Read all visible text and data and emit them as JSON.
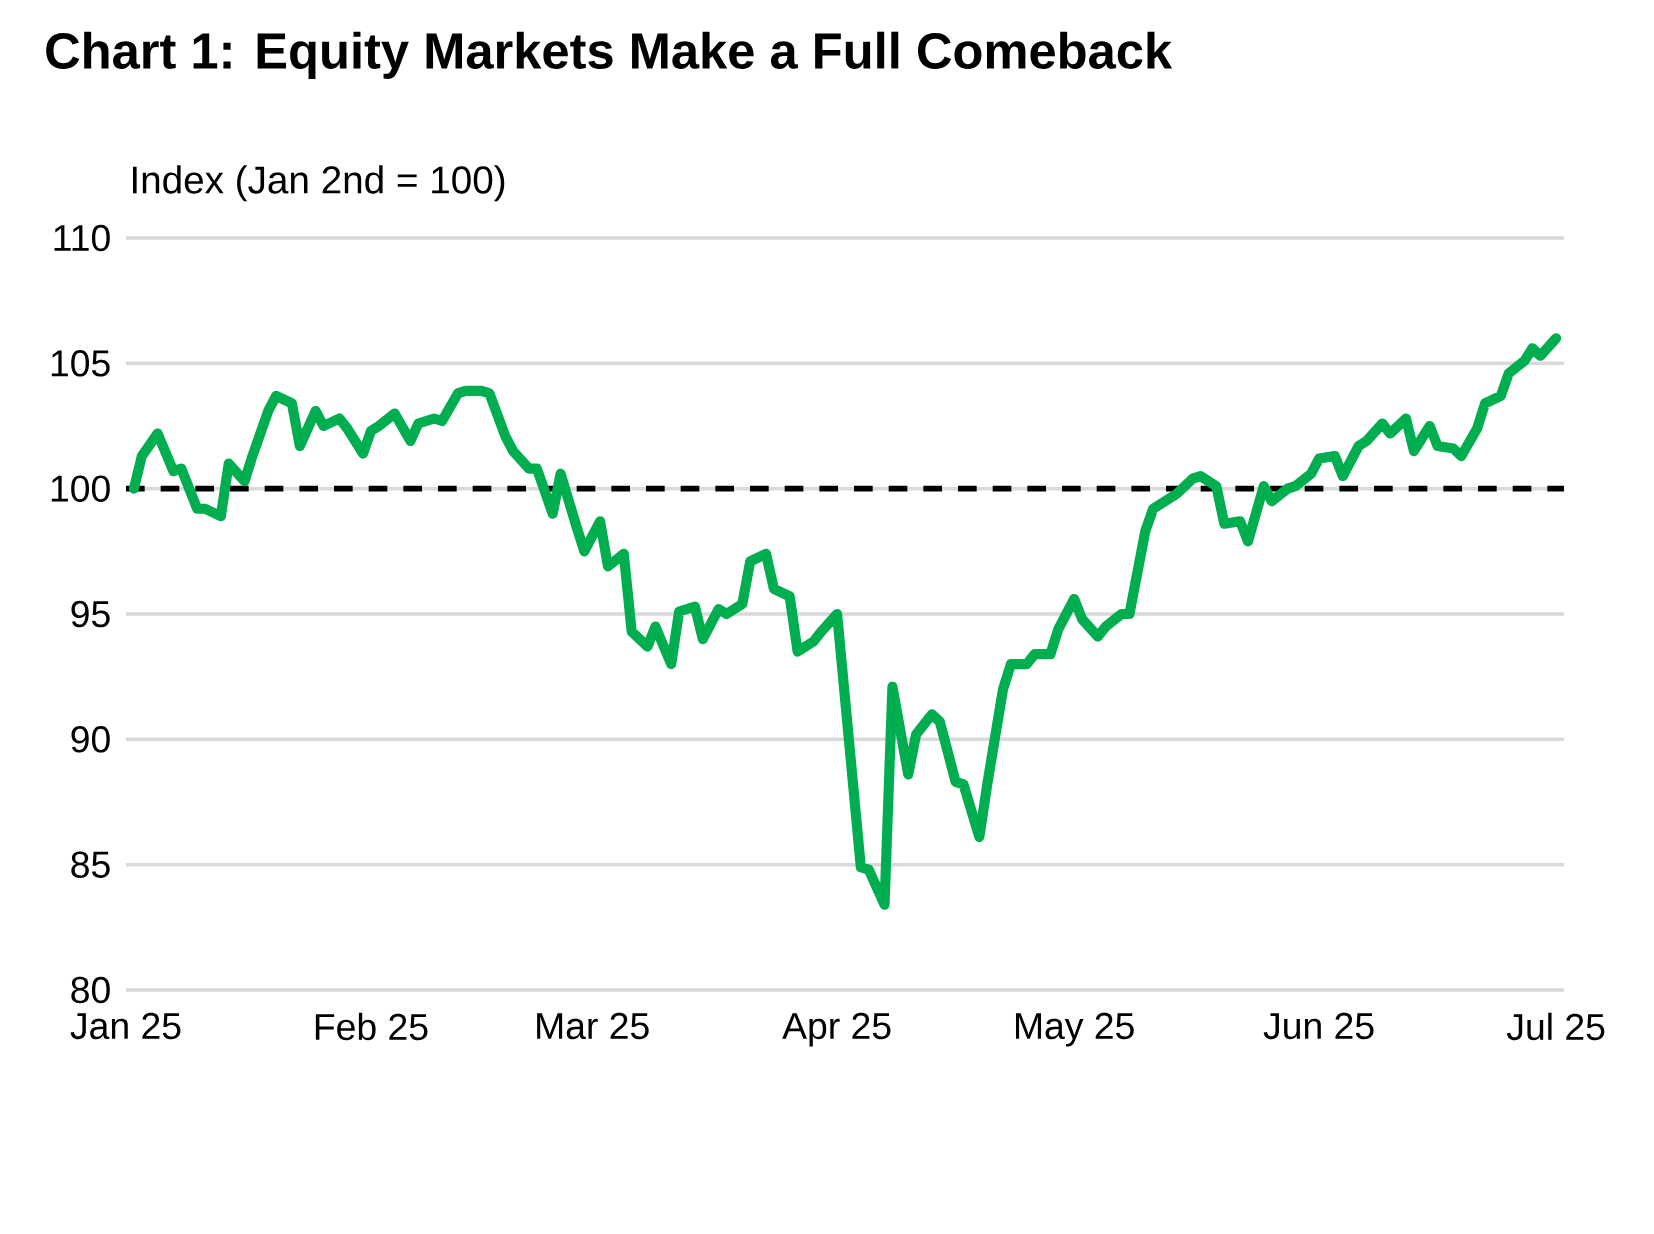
{
  "chart_data": {
    "type": "line",
    "title": "Chart 1: Equity Markets Make a Full Comeback",
    "ylabel": "Index (Jan 2nd = 100)",
    "x": [
      "2025-01-02",
      "2025-01-03",
      "2025-01-05",
      "2025-01-07",
      "2025-01-08",
      "2025-01-10",
      "2025-01-11",
      "2025-01-13",
      "2025-01-14",
      "2025-01-16",
      "2025-01-17",
      "2025-01-19",
      "2025-01-20",
      "2025-01-22",
      "2025-01-23",
      "2025-01-25",
      "2025-01-26",
      "2025-01-28",
      "2025-01-29",
      "2025-01-31",
      "2025-02-01",
      "2025-02-02",
      "2025-02-04",
      "2025-02-06",
      "2025-02-07",
      "2025-02-09",
      "2025-02-10",
      "2025-02-12",
      "2025-02-13",
      "2025-02-15",
      "2025-02-16",
      "2025-02-18",
      "2025-02-19",
      "2025-02-21",
      "2025-02-22",
      "2025-02-24",
      "2025-02-25",
      "2025-02-27",
      "2025-02-28",
      "2025-03-02",
      "2025-03-03",
      "2025-03-05",
      "2025-03-06",
      "2025-03-08",
      "2025-03-09",
      "2025-03-11",
      "2025-03-12",
      "2025-03-14",
      "2025-03-15",
      "2025-03-17",
      "2025-03-18",
      "2025-03-20",
      "2025-03-21",
      "2025-03-23",
      "2025-03-24",
      "2025-03-26",
      "2025-03-27",
      "2025-03-29",
      "2025-03-30",
      "2025-04-01",
      "2025-04-04",
      "2025-04-05",
      "2025-04-07",
      "2025-04-08",
      "2025-04-10",
      "2025-04-11",
      "2025-04-13",
      "2025-04-14",
      "2025-04-16",
      "2025-04-17",
      "2025-04-19",
      "2025-04-20",
      "2025-04-22",
      "2025-04-23",
      "2025-04-25",
      "2025-04-26",
      "2025-04-28",
      "2025-04-29",
      "2025-05-01",
      "2025-05-02",
      "2025-05-04",
      "2025-05-05",
      "2025-05-07",
      "2025-05-08",
      "2025-05-10",
      "2025-05-11",
      "2025-05-13",
      "2025-05-14",
      "2025-05-16",
      "2025-05-17",
      "2025-05-19",
      "2025-05-20",
      "2025-05-22",
      "2025-05-23",
      "2025-05-25",
      "2025-05-26",
      "2025-05-28",
      "2025-05-29",
      "2025-05-31",
      "2025-06-01",
      "2025-06-03",
      "2025-06-04",
      "2025-06-06",
      "2025-06-07",
      "2025-06-09",
      "2025-06-10",
      "2025-06-12",
      "2025-06-13",
      "2025-06-15",
      "2025-06-16",
      "2025-06-18",
      "2025-06-19",
      "2025-06-21",
      "2025-06-22",
      "2025-06-24",
      "2025-06-25",
      "2025-06-27",
      "2025-06-28",
      "2025-06-29",
      "2025-07-01"
    ],
    "values": [
      100,
      101.3,
      102.2,
      100.7,
      100.8,
      99.2,
      99.2,
      98.9,
      101.0,
      100.3,
      101.3,
      103.1,
      103.7,
      103.4,
      101.7,
      103.1,
      102.5,
      102.8,
      102.4,
      101.4,
      102.3,
      102.5,
      103.0,
      101.9,
      102.6,
      102.8,
      102.7,
      103.8,
      103.9,
      103.9,
      103.8,
      102.1,
      101.5,
      100.8,
      100.8,
      99.0,
      100.6,
      98.5,
      97.5,
      98.7,
      96.9,
      97.4,
      94.3,
      93.7,
      94.5,
      93.0,
      95.1,
      95.3,
      94.0,
      95.2,
      95.0,
      95.4,
      97.1,
      97.4,
      96.0,
      95.7,
      93.5,
      93.9,
      94.3,
      95.0,
      84.9,
      84.8,
      83.4,
      92.1,
      88.6,
      90.2,
      91.0,
      90.7,
      88.3,
      88.2,
      86.1,
      88.2,
      92.0,
      93.0,
      93.0,
      93.4,
      93.4,
      94.4,
      95.6,
      94.8,
      94.1,
      94.5,
      95.0,
      95.0,
      98.3,
      99.2,
      99.6,
      99.8,
      100.4,
      100.5,
      100.1,
      98.6,
      98.7,
      97.9,
      100.1,
      99.5,
      100.0,
      100.1,
      100.6,
      101.2,
      101.3,
      100.5,
      101.7,
      101.9,
      102.6,
      102.2,
      102.8,
      101.5,
      102.5,
      101.7,
      101.6,
      101.3,
      102.4,
      103.4,
      103.7,
      104.6,
      105.1,
      105.6,
      105.3,
      106.0
    ],
    "color": "#00ad4f",
    "ref_lines": [
      {
        "axis": "y",
        "value": 100,
        "color": "#000000",
        "line_style": "dashed"
      }
    ],
    "grid": "y",
    "xlim": [
      "2025-01-01",
      "2025-07-02"
    ],
    "xticks": [
      {
        "value": "2025-01-01",
        "label": "Jan 25"
      },
      {
        "value": "2025-02-01",
        "label": "Feb 25"
      },
      {
        "value": "2025-03-01",
        "label": "Mar 25"
      },
      {
        "value": "2025-04-01",
        "label": "Apr 25"
      },
      {
        "value": "2025-05-01",
        "label": "May 25"
      },
      {
        "value": "2025-06-01",
        "label": "Jun 25"
      },
      {
        "value": "2025-07-01",
        "label": "Jul 25"
      }
    ],
    "ylim": [
      80,
      110
    ],
    "yticks": [
      80,
      85,
      90,
      95,
      100,
      105,
      110
    ]
  }
}
